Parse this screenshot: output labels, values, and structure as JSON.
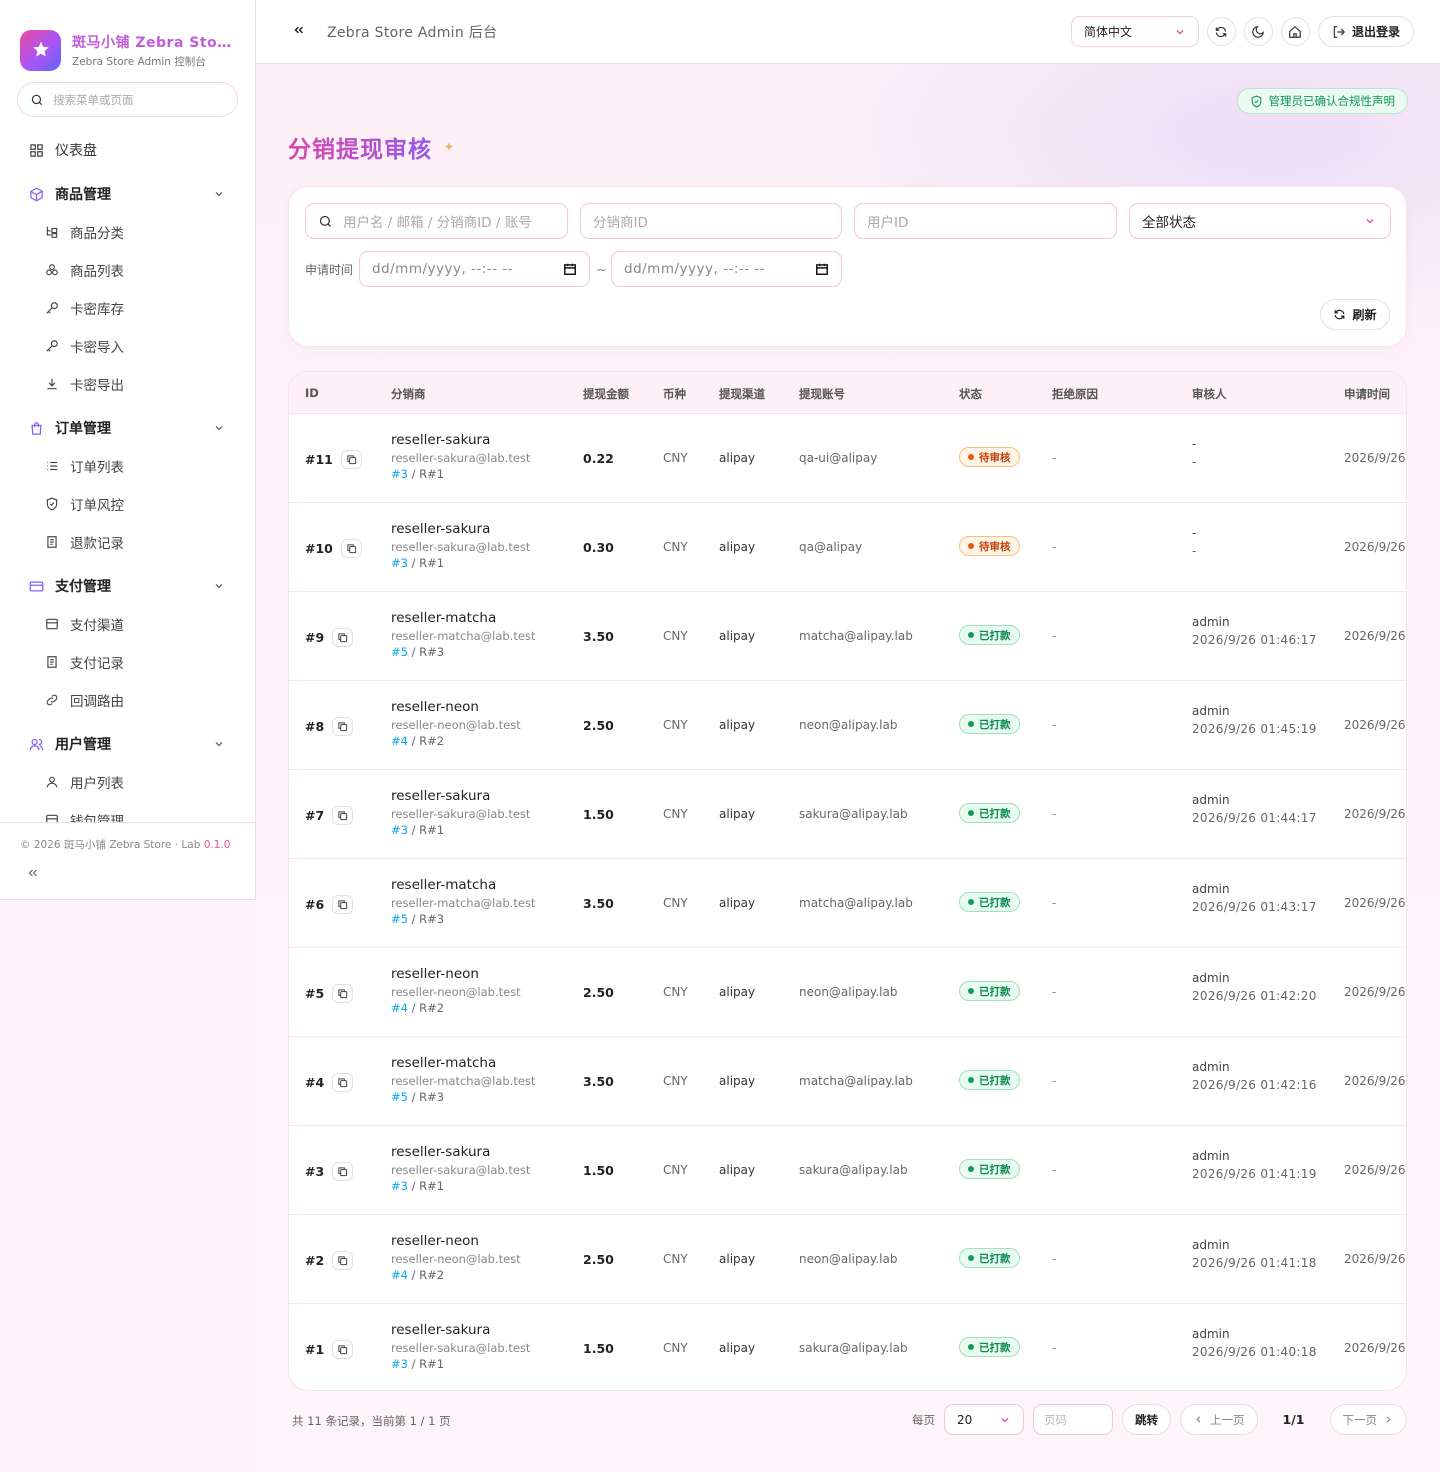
{
  "brand": {
    "title": "斑马小铺 Zebra Store",
    "subtitle": "Zebra Store Admin 控制台"
  },
  "sidebar": {
    "search_placeholder": "搜索菜单或页面",
    "dashboard": "仪表盘",
    "groups": [
      {
        "label": "商品管理",
        "items": [
          "商品分类",
          "商品列表",
          "卡密库存",
          "卡密导入",
          "卡密导出"
        ]
      },
      {
        "label": "订单管理",
        "items": [
          "订单列表",
          "订单风控",
          "退款记录"
        ]
      },
      {
        "label": "支付管理",
        "items": [
          "支付渠道",
          "支付记录",
          "回调路由"
        ]
      },
      {
        "label": "用户管理",
        "items": [
          "用户列表",
          "钱包管理"
        ]
      }
    ],
    "footer": {
      "text": "© 2026 斑马小铺 Zebra Store · Lab",
      "version": "0.1.0"
    }
  },
  "topbar": {
    "title": "Zebra Store Admin 后台",
    "language": "简体中文",
    "logout": "退出登录"
  },
  "compliance_badge": "管理员已确认合规性声明",
  "page_title": "分销提现审核",
  "filters": {
    "keyword_placeholder": "用户名 / 邮箱 / 分销商ID / 账号",
    "reseller_placeholder": "分销商ID",
    "user_placeholder": "用户ID",
    "status": "全部状态",
    "time_label": "申请时间",
    "date_placeholder": "dd/mm/yyyy, --:-- --",
    "refresh": "刷新"
  },
  "table": {
    "headers": {
      "id": "ID",
      "reseller": "分销商",
      "amount": "提现金额",
      "currency": "币种",
      "channel": "提现渠道",
      "account": "提现账号",
      "status": "状态",
      "reject": "拒绝原因",
      "reviewer": "审核人",
      "applied": "申请时间"
    },
    "rows": [
      {
        "id": "#11",
        "name": "reseller-sakura",
        "email": "reseller-sakura@lab.test",
        "ref_b": "#3",
        "ref_r": "R#1",
        "amount": "0.22",
        "currency": "CNY",
        "channel": "alipay",
        "account": "qa-ui@alipay",
        "status": "待审核",
        "status_kind": "pending",
        "reject": "-",
        "reviewer": "-",
        "review_time": "-",
        "applied": "2026/9/26"
      },
      {
        "id": "#10",
        "name": "reseller-sakura",
        "email": "reseller-sakura@lab.test",
        "ref_b": "#3",
        "ref_r": "R#1",
        "amount": "0.30",
        "currency": "CNY",
        "channel": "alipay",
        "account": "qa@alipay",
        "status": "待审核",
        "status_kind": "pending",
        "reject": "-",
        "reviewer": "-",
        "review_time": "-",
        "applied": "2026/9/26"
      },
      {
        "id": "#9",
        "name": "reseller-matcha",
        "email": "reseller-matcha@lab.test",
        "ref_b": "#5",
        "ref_r": "R#3",
        "amount": "3.50",
        "currency": "CNY",
        "channel": "alipay",
        "account": "matcha@alipay.lab",
        "status": "已打款",
        "status_kind": "paid",
        "reject": "-",
        "reviewer": "admin",
        "review_time": "2026/9/26 01:46:17",
        "applied": "2026/9/26"
      },
      {
        "id": "#8",
        "name": "reseller-neon",
        "email": "reseller-neon@lab.test",
        "ref_b": "#4",
        "ref_r": "R#2",
        "amount": "2.50",
        "currency": "CNY",
        "channel": "alipay",
        "account": "neon@alipay.lab",
        "status": "已打款",
        "status_kind": "paid",
        "reject": "-",
        "reviewer": "admin",
        "review_time": "2026/9/26 01:45:19",
        "applied": "2026/9/26"
      },
      {
        "id": "#7",
        "name": "reseller-sakura",
        "email": "reseller-sakura@lab.test",
        "ref_b": "#3",
        "ref_r": "R#1",
        "amount": "1.50",
        "currency": "CNY",
        "channel": "alipay",
        "account": "sakura@alipay.lab",
        "status": "已打款",
        "status_kind": "paid",
        "reject": "-",
        "reviewer": "admin",
        "review_time": "2026/9/26 01:44:17",
        "applied": "2026/9/26"
      },
      {
        "id": "#6",
        "name": "reseller-matcha",
        "email": "reseller-matcha@lab.test",
        "ref_b": "#5",
        "ref_r": "R#3",
        "amount": "3.50",
        "currency": "CNY",
        "channel": "alipay",
        "account": "matcha@alipay.lab",
        "status": "已打款",
        "status_kind": "paid",
        "reject": "-",
        "reviewer": "admin",
        "review_time": "2026/9/26 01:43:17",
        "applied": "2026/9/26"
      },
      {
        "id": "#5",
        "name": "reseller-neon",
        "email": "reseller-neon@lab.test",
        "ref_b": "#4",
        "ref_r": "R#2",
        "amount": "2.50",
        "currency": "CNY",
        "channel": "alipay",
        "account": "neon@alipay.lab",
        "status": "已打款",
        "status_kind": "paid",
        "reject": "-",
        "reviewer": "admin",
        "review_time": "2026/9/26 01:42:20",
        "applied": "2026/9/26"
      },
      {
        "id": "#4",
        "name": "reseller-matcha",
        "email": "reseller-matcha@lab.test",
        "ref_b": "#5",
        "ref_r": "R#3",
        "amount": "3.50",
        "currency": "CNY",
        "channel": "alipay",
        "account": "matcha@alipay.lab",
        "status": "已打款",
        "status_kind": "paid",
        "reject": "-",
        "reviewer": "admin",
        "review_time": "2026/9/26 01:42:16",
        "applied": "2026/9/26"
      },
      {
        "id": "#3",
        "name": "reseller-sakura",
        "email": "reseller-sakura@lab.test",
        "ref_b": "#3",
        "ref_r": "R#1",
        "amount": "1.50",
        "currency": "CNY",
        "channel": "alipay",
        "account": "sakura@alipay.lab",
        "status": "已打款",
        "status_kind": "paid",
        "reject": "-",
        "reviewer": "admin",
        "review_time": "2026/9/26 01:41:19",
        "applied": "2026/9/26"
      },
      {
        "id": "#2",
        "name": "reseller-neon",
        "email": "reseller-neon@lab.test",
        "ref_b": "#4",
        "ref_r": "R#2",
        "amount": "2.50",
        "currency": "CNY",
        "channel": "alipay",
        "account": "neon@alipay.lab",
        "status": "已打款",
        "status_kind": "paid",
        "reject": "-",
        "reviewer": "admin",
        "review_time": "2026/9/26 01:41:18",
        "applied": "2026/9/26"
      },
      {
        "id": "#1",
        "name": "reseller-sakura",
        "email": "reseller-sakura@lab.test",
        "ref_b": "#3",
        "ref_r": "R#1",
        "amount": "1.50",
        "currency": "CNY",
        "channel": "alipay",
        "account": "sakura@alipay.lab",
        "status": "已打款",
        "status_kind": "paid",
        "reject": "-",
        "reviewer": "admin",
        "review_time": "2026/9/26 01:40:18",
        "applied": "2026/9/26"
      }
    ]
  },
  "pagination": {
    "summary": "共 11 条记录，当前第 1 / 1 页",
    "per_page_label": "每页",
    "per_page": "20",
    "page_placeholder": "页码",
    "jump": "跳转",
    "prev": "上一页",
    "current": "1/1",
    "next": "下一页"
  },
  "colors": {
    "accent": "#d946a8",
    "accent2": "#8b5cf6",
    "paid": "#0f9d58",
    "pending": "#ea580c",
    "link": "#0ea5e9"
  }
}
